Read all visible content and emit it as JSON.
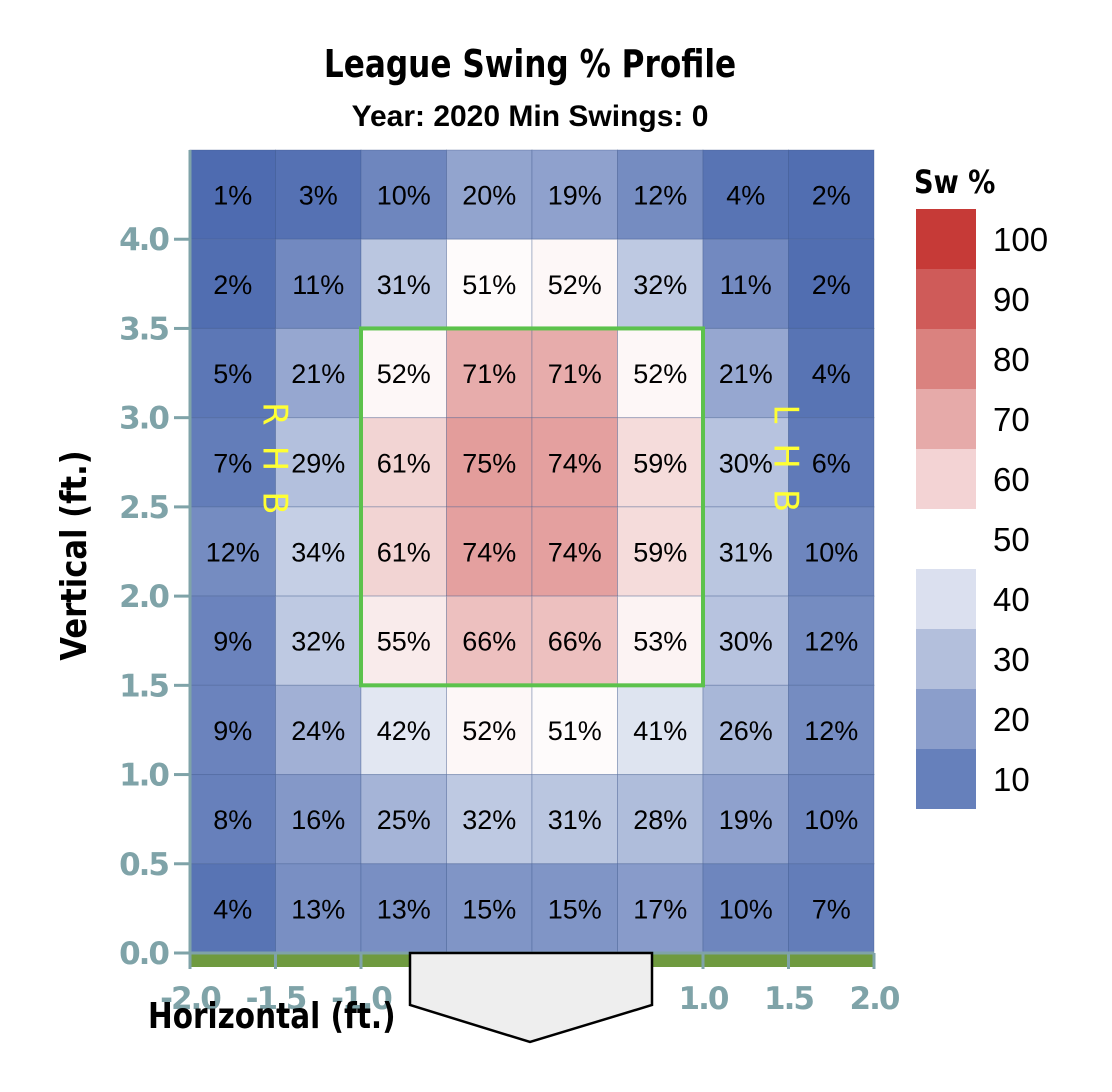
{
  "chart_data": {
    "type": "heatmap",
    "title": "League Swing % Profile",
    "subtitle": "Year: 2020 Min Swings: 0",
    "xlabel": "Horizontal (ft.)",
    "ylabel": "Vertical (ft.)",
    "xlim": [
      -2.0,
      2.0
    ],
    "ylim": [
      0.0,
      4.5
    ],
    "x_ticks": [
      "-2.0",
      "-1.5",
      "-1.0",
      "1.0",
      "1.5",
      "2.0"
    ],
    "x_tick_values": [
      -2.0,
      -1.5,
      -1.0,
      1.0,
      1.5,
      2.0
    ],
    "y_ticks": [
      "0.0",
      "0.5",
      "1.0",
      "1.5",
      "2.0",
      "2.5",
      "3.0",
      "3.5",
      "4.0"
    ],
    "y_tick_values": [
      0.0,
      0.5,
      1.0,
      1.5,
      2.0,
      2.5,
      3.0,
      3.5,
      4.0
    ],
    "cell_width_ft": 0.5,
    "cell_height_ft": 0.5,
    "rows_top_to_bottom": [
      [
        1,
        3,
        10,
        20,
        19,
        12,
        4,
        2
      ],
      [
        2,
        11,
        31,
        51,
        52,
        32,
        11,
        2
      ],
      [
        5,
        21,
        52,
        71,
        71,
        52,
        21,
        4
      ],
      [
        7,
        29,
        61,
        75,
        74,
        59,
        30,
        6
      ],
      [
        12,
        34,
        61,
        74,
        74,
        59,
        31,
        10
      ],
      [
        9,
        32,
        55,
        66,
        66,
        53,
        30,
        12
      ],
      [
        9,
        24,
        42,
        52,
        51,
        41,
        26,
        12
      ],
      [
        8,
        16,
        25,
        32,
        31,
        28,
        19,
        10
      ],
      [
        4,
        13,
        13,
        15,
        15,
        17,
        10,
        7
      ]
    ],
    "strike_zone": {
      "x": [
        -1.0,
        1.0
      ],
      "y": [
        1.5,
        3.5
      ]
    },
    "annotations": [
      {
        "text": "RHB",
        "x": -1.5,
        "y": 2.75
      },
      {
        "text": "LHB",
        "x": 1.5,
        "y": 2.75
      }
    ],
    "legend": {
      "title": "Sw %",
      "placement": "right",
      "labels": [
        "100",
        "90",
        "80",
        "70",
        "60",
        "50",
        "40",
        "30",
        "20",
        "10"
      ],
      "swatch_colors": [
        "#c63a37",
        "#cf5b59",
        "#da827f",
        "#e6aaa9",
        "#f3d3d4",
        "#ffffff",
        "#dbe0ef",
        "#b3bfdc",
        "#8b9ecb",
        "#6680bb"
      ]
    },
    "colors": {
      "low": "#4a68ae",
      "mid": "#ffffff",
      "high": "#c63a37",
      "strike_zone": "#5cc24c",
      "batter_text": "#ffff33",
      "axis": "#7fa3a8",
      "ground": "#6f9a3f",
      "plate_fill": "#eeeeee"
    },
    "grid": false
  }
}
